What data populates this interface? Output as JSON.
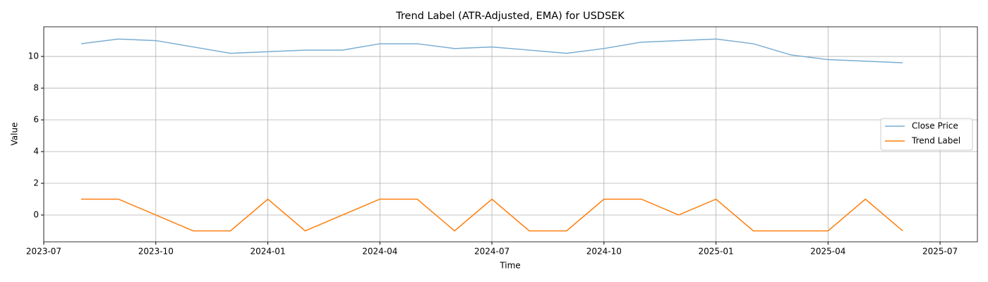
{
  "chart_data": {
    "type": "line",
    "title": "Trend Label (ATR-Adjusted, EMA) for USDSEK",
    "x_label": "Time",
    "y_label": "Value",
    "x": [
      "2023-08",
      "2023-09",
      "2023-10",
      "2023-11",
      "2023-12",
      "2024-01",
      "2024-02",
      "2024-03",
      "2024-04",
      "2024-05",
      "2024-06",
      "2024-07",
      "2024-08",
      "2024-09",
      "2024-10",
      "2024-11",
      "2024-12",
      "2025-01",
      "2025-02",
      "2025-03",
      "2025-04",
      "2025-05",
      "2025-06"
    ],
    "series": [
      {
        "name": "Close Price",
        "color": "#79add2",
        "values": [
          10.8,
          11.1,
          11.0,
          10.6,
          10.2,
          10.3,
          10.4,
          10.4,
          10.8,
          10.8,
          10.5,
          10.6,
          10.4,
          10.2,
          10.5,
          10.9,
          11.0,
          11.1,
          10.8,
          10.1,
          9.8,
          9.7,
          9.6
        ]
      },
      {
        "name": "Trend Label",
        "color": "#ff7f0e",
        "values": [
          1,
          1,
          0,
          -1,
          -1,
          1,
          -1,
          0,
          1,
          1,
          -1,
          1,
          -1,
          -1,
          1,
          1,
          0,
          1,
          -1,
          -1,
          -1,
          1,
          -1
        ]
      }
    ],
    "xlim": [
      "2023-07",
      "2025-08"
    ],
    "xticks": [
      "2023-07",
      "2023-10",
      "2024-01",
      "2024-04",
      "2024-07",
      "2024-10",
      "2025-01",
      "2025-04",
      "2025-07"
    ],
    "ylim": [
      -1.69,
      11.87
    ],
    "yticks": [
      0,
      2,
      4,
      6,
      8,
      10
    ],
    "grid": true,
    "legend": "right"
  }
}
